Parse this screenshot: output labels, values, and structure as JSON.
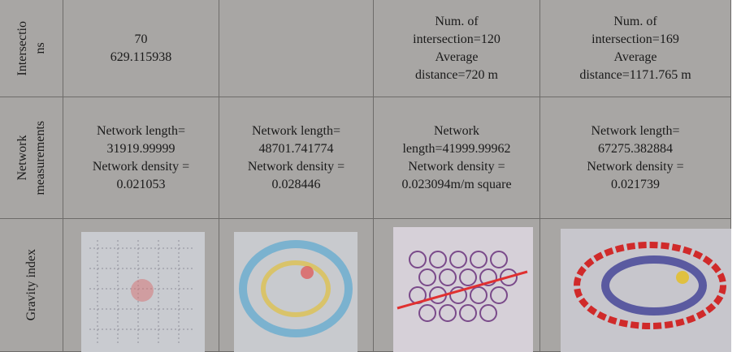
{
  "table": {
    "rows": [
      {
        "header": [
          "Intersectio",
          "ns"
        ],
        "cells": [
          [
            "70",
            "629.115938"
          ],
          [],
          [
            "Num. of",
            "intersection=120",
            "Average",
            "distance=720 m"
          ],
          [
            "Num. of",
            "intersection=169",
            "Average",
            "distance=1171.765 m"
          ]
        ]
      },
      {
        "header": [
          "Network",
          "measurements"
        ],
        "cells": [
          [
            "Network length=",
            "31919.99999",
            "Network density =",
            "0.021053"
          ],
          [
            "Network length=",
            "48701.741774",
            "Network density =",
            "0.028446"
          ],
          [
            "Network",
            "length=41999.99962",
            "Network density =",
            "0.023094m/m square"
          ],
          [
            "Network length=",
            "67275.382884",
            "Network density =",
            "0.021739"
          ]
        ]
      },
      {
        "header": [
          "Gravity index"
        ]
      }
    ]
  }
}
